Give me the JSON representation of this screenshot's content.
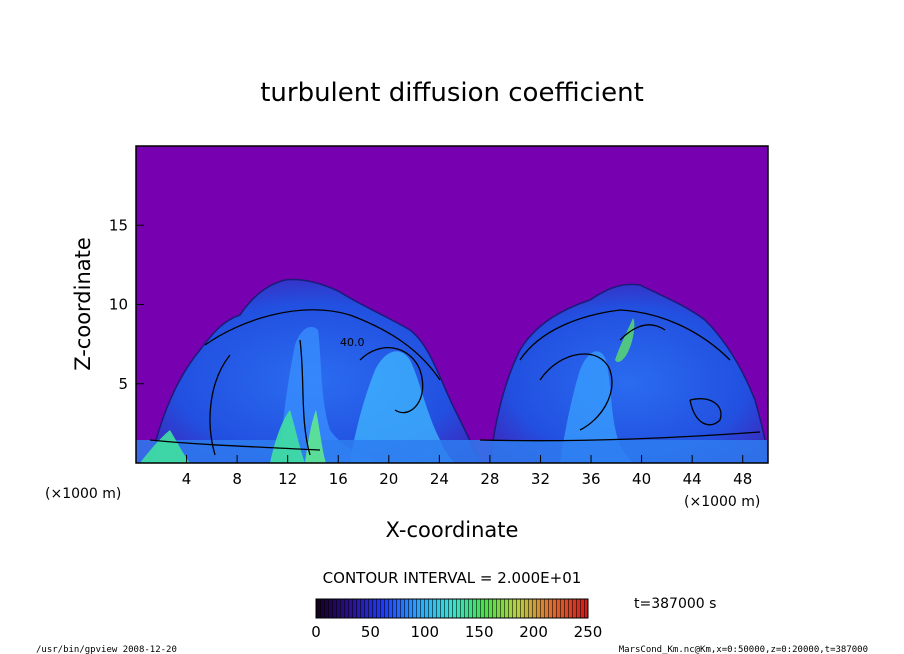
{
  "chart_data": {
    "type": "heatmap",
    "title": "turbulent diffusion coefficient",
    "xlabel": "X-coordinate",
    "ylabel": "Z-coordinate",
    "x_unit": "(×1000 m)",
    "y_unit": "(×1000 m)",
    "xlim": [
      0,
      50
    ],
    "ylim": [
      0,
      20
    ],
    "x_ticks": [
      4,
      8,
      12,
      16,
      20,
      24,
      28,
      32,
      36,
      40,
      44,
      48
    ],
    "y_ticks": [
      5,
      10,
      15
    ],
    "contour_interval_text": "CONTOUR INTERVAL = 2.000E+01",
    "contour_label": "40.0",
    "time_text": "t=387000 s",
    "colorbar": {
      "min": 0,
      "max": 250,
      "ticks": [
        0,
        50,
        100,
        150,
        200,
        250
      ]
    },
    "plumes": [
      {
        "name": "left",
        "x_center": 15,
        "z_top": 11.5,
        "x_range": [
          4,
          28
        ]
      },
      {
        "name": "right",
        "x_center": 39,
        "z_top": 11.5,
        "x_range": [
          29,
          50
        ]
      }
    ],
    "background_value": 0
  },
  "footer": {
    "left": "/usr/bin/gpview   2008-12-20",
    "right": "MarsCond_Km.nc@Km,x=0:50000,z=0:20000,t=387000"
  }
}
